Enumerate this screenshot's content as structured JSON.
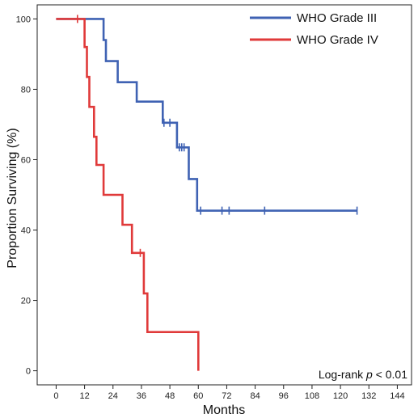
{
  "chart_data": {
    "type": "line",
    "step": true,
    "title": "",
    "xlabel": "Months",
    "ylabel": "Proportion Surviving (%)",
    "xlim": [
      -8,
      150
    ],
    "ylim": [
      -4,
      104
    ],
    "xticks": [
      0,
      12,
      24,
      36,
      48,
      60,
      72,
      84,
      96,
      108,
      120,
      132,
      144
    ],
    "yticks": [
      0,
      20,
      40,
      60,
      80,
      100
    ],
    "legend_position": "top-right",
    "grid": false,
    "annotation": {
      "prefix": "Log-rank ",
      "italic": "p",
      "suffix": " < 0.01"
    },
    "series": [
      {
        "name": "WHO Grade III",
        "color": "#3f62b3",
        "steps": [
          [
            0,
            100
          ],
          [
            20,
            100
          ],
          [
            20,
            94
          ],
          [
            21,
            94
          ],
          [
            21,
            88
          ],
          [
            26,
            88
          ],
          [
            26,
            82
          ],
          [
            34,
            82
          ],
          [
            34,
            76.5
          ],
          [
            45,
            76.5
          ],
          [
            45,
            70.5
          ],
          [
            51,
            70.5
          ],
          [
            51,
            63.5
          ],
          [
            56,
            63.5
          ],
          [
            56,
            54.5
          ],
          [
            59.5,
            54.5
          ],
          [
            59.5,
            45.5
          ],
          [
            127,
            45.5
          ]
        ],
        "censored": [
          [
            45.5,
            70.5
          ],
          [
            48,
            70.5
          ],
          [
            52,
            63.5
          ],
          [
            53,
            63.5
          ],
          [
            54,
            63.5
          ],
          [
            61,
            45.5
          ],
          [
            70,
            45.5
          ],
          [
            73,
            45.5
          ],
          [
            88,
            45.5
          ],
          [
            127,
            45.5
          ]
        ]
      },
      {
        "name": "WHO Grade IV",
        "color": "#e03a3a",
        "steps": [
          [
            0,
            100
          ],
          [
            12,
            100
          ],
          [
            12,
            92
          ],
          [
            13,
            92
          ],
          [
            13,
            83.5
          ],
          [
            14,
            83.5
          ],
          [
            14,
            75
          ],
          [
            16,
            75
          ],
          [
            16,
            66.5
          ],
          [
            17,
            66.5
          ],
          [
            17,
            58.5
          ],
          [
            20,
            58.5
          ],
          [
            20,
            50
          ],
          [
            28,
            50
          ],
          [
            28,
            41.5
          ],
          [
            32,
            41.5
          ],
          [
            32,
            33.5
          ],
          [
            37,
            33.5
          ],
          [
            37,
            22
          ],
          [
            38.5,
            22
          ],
          [
            38.5,
            11
          ],
          [
            60,
            11
          ],
          [
            60,
            0
          ]
        ],
        "censored": [
          [
            9,
            100
          ],
          [
            35.5,
            33.5
          ]
        ]
      }
    ]
  }
}
